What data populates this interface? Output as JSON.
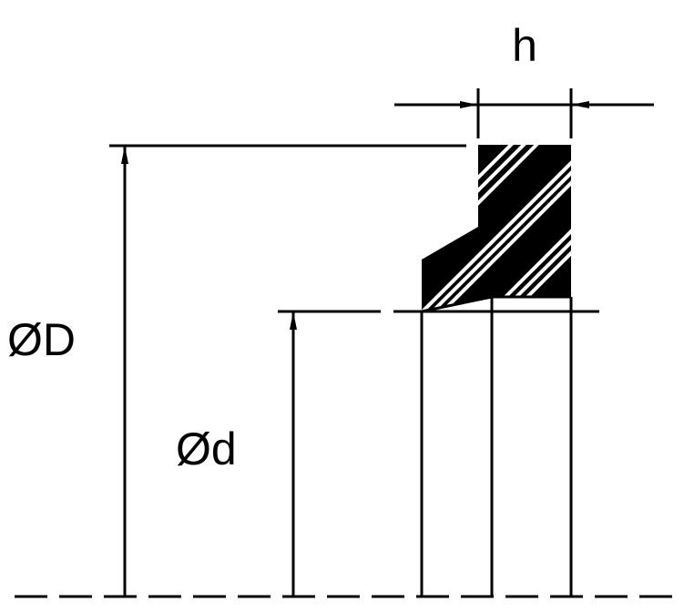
{
  "labels": {
    "height": "h",
    "outer_diameter": "ØD",
    "inner_diameter": "Ød"
  },
  "colors": {
    "ink": "#000000",
    "background": "#ffffff"
  }
}
